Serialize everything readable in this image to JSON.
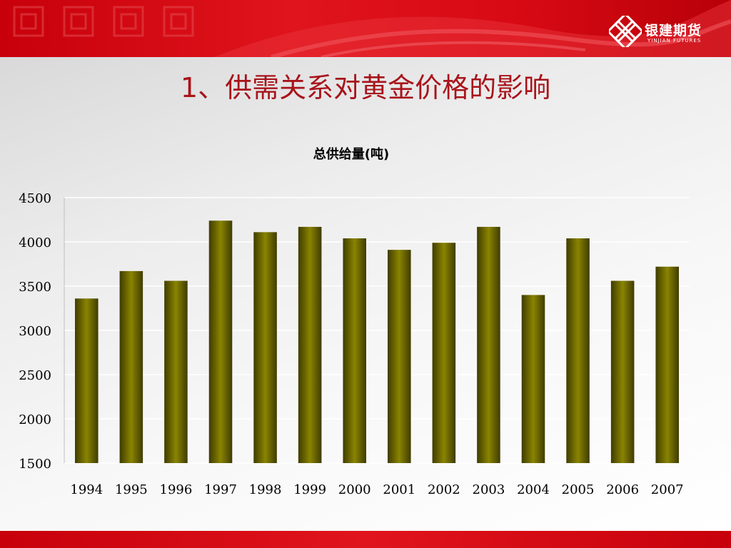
{
  "logo": {
    "name": "银建期货",
    "sub": "YINJIAN FUTURES"
  },
  "slide": {
    "title": "1、供需关系对黄金价格的影响"
  },
  "colors": {
    "bar": "#7a7500",
    "bar_dark": "#3f3c00",
    "title": "#a8141b",
    "banner": "#d80a14"
  },
  "chart_data": {
    "type": "bar",
    "title": "总供给量(吨)",
    "categories": [
      "1994",
      "1995",
      "1996",
      "1997",
      "1998",
      "1999",
      "2000",
      "2001",
      "2002",
      "2003",
      "2004",
      "2005",
      "2006",
      "2007"
    ],
    "values": [
      3360,
      3670,
      3560,
      4240,
      4110,
      4170,
      4040,
      3910,
      3990,
      4170,
      3400,
      4040,
      3560,
      3720
    ],
    "xlabel": "",
    "ylabel": "",
    "ylim": [
      1500,
      4500
    ],
    "yticks": [
      1500,
      2000,
      2500,
      3000,
      3500,
      4000,
      4500
    ],
    "grid": true,
    "legend": "none"
  }
}
